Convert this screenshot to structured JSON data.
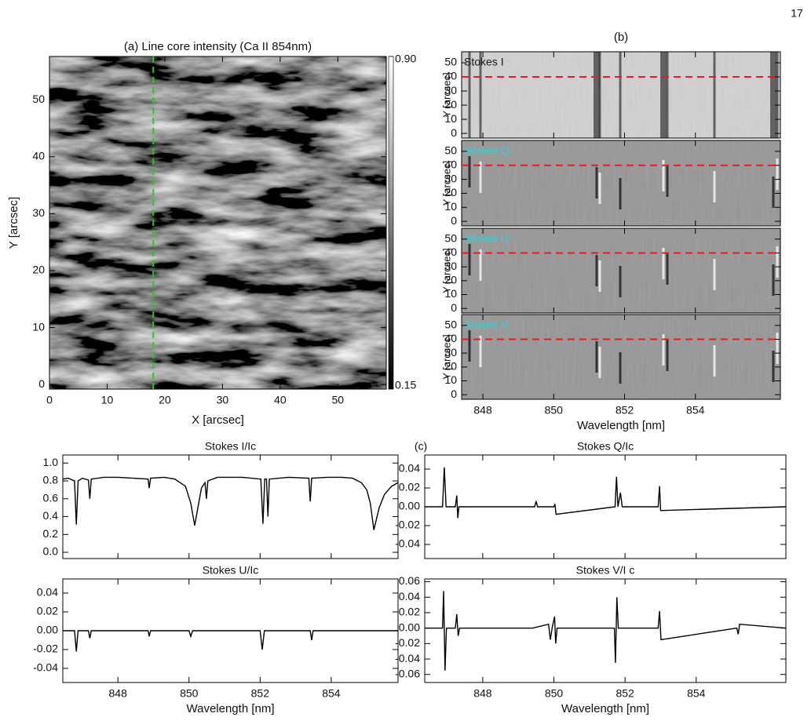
{
  "page_number": "17",
  "panel_c_label": "(c)",
  "chart_data": [
    {
      "type": "image",
      "title": "(a) Line core intensity (Ca II 854nm)",
      "xlabel": "X [arcsec]",
      "ylabel": "Y [arcsec]",
      "xlim": [
        0,
        58.4
      ],
      "ylim": [
        -0.8,
        57.6
      ],
      "xticks": [
        0,
        10,
        20,
        30,
        40,
        50
      ],
      "yticks": [
        0,
        10,
        20,
        30,
        40,
        50
      ],
      "slit_x": 18,
      "slit_color": "#22cc22",
      "colorbar": {
        "clim": [
          0.15,
          0.9
        ],
        "ticks": [
          {
            "value": 0.9,
            "label": "0.90"
          },
          0.15
        ]
      }
    },
    {
      "type": "spectrogram",
      "title": "(b)",
      "xlabel": "Wavelength [nm]",
      "ylabel": "Y [arcsec]",
      "xlim": [
        847.4,
        856.4
      ],
      "xticks": [
        848,
        850,
        852,
        854
      ],
      "ylim": [
        -3.3,
        57.8
      ],
      "yticks": [
        0,
        10,
        20,
        30,
        40,
        50
      ],
      "cut_y": 40,
      "cut_color": "#e02020",
      "panels": [
        {
          "name": "Stokes I",
          "label_color": "#1a1a1a"
        },
        {
          "name": "Stokes Q",
          "label_color": "#22d8e0"
        },
        {
          "name": "Stokes U",
          "label_color": "#22d8e0"
        },
        {
          "name": "Stokes V",
          "label_color": "#22d8e0"
        }
      ]
    },
    {
      "type": "line",
      "title": "Stokes I/Ic",
      "color": "#000000",
      "show_xtick_labels": false,
      "xlim": [
        846.45,
        855.88
      ],
      "ylim": [
        -0.07,
        1.09
      ],
      "xticks": [
        848,
        850,
        852,
        854
      ],
      "yticks": [
        {
          "value": 0,
          "label": "0.0"
        },
        0.2,
        0.4,
        0.6,
        0.8,
        {
          "value": 1,
          "label": "1.0"
        }
      ],
      "x": [
        846.45,
        846.6,
        846.78,
        846.83,
        846.88,
        847.0,
        847.17,
        847.21,
        847.25,
        847.6,
        848.0,
        848.85,
        848.88,
        848.92,
        849.3,
        849.6,
        849.9,
        850.05,
        850.16,
        850.25,
        850.35,
        850.45,
        850.49,
        850.53,
        850.8,
        851.5,
        852.02,
        852.08,
        852.13,
        852.18,
        852.22,
        852.26,
        852.8,
        853.37,
        853.41,
        853.45,
        853.9,
        854.3,
        854.6,
        854.85,
        855.0,
        855.1,
        855.2,
        855.35,
        855.5,
        855.7,
        855.88
      ],
      "values": [
        0.82,
        0.83,
        0.8,
        0.31,
        0.8,
        0.83,
        0.81,
        0.6,
        0.82,
        0.84,
        0.84,
        0.82,
        0.72,
        0.83,
        0.84,
        0.82,
        0.74,
        0.55,
        0.3,
        0.5,
        0.72,
        0.78,
        0.6,
        0.8,
        0.84,
        0.84,
        0.82,
        0.32,
        0.82,
        0.82,
        0.4,
        0.82,
        0.84,
        0.83,
        0.57,
        0.83,
        0.84,
        0.84,
        0.83,
        0.78,
        0.7,
        0.55,
        0.25,
        0.5,
        0.65,
        0.74,
        0.78
      ]
    },
    {
      "type": "line",
      "title": "Stokes Q/Ic",
      "color": "#000000",
      "show_xtick_labels": false,
      "xlim": [
        846.37,
        856.52
      ],
      "ylim": [
        -0.055,
        0.055
      ],
      "xticks": [
        848,
        850,
        852,
        854
      ],
      "yticks": [
        -0.04,
        -0.02,
        {
          "value": 0,
          "label": "0.00"
        },
        0.02,
        0.04
      ],
      "x": [
        846.37,
        846.87,
        846.92,
        846.97,
        847.23,
        847.27,
        847.3,
        847.33,
        849.46,
        849.5,
        849.54,
        850.0,
        850.03,
        850.06,
        851.72,
        851.76,
        851.8,
        851.87,
        851.92,
        852.93,
        852.97,
        853.0,
        856.52
      ],
      "values": [
        0,
        0,
        0.042,
        0,
        0,
        0.012,
        -0.012,
        0,
        0,
        0.006,
        0,
        0,
        0.003,
        -0.008,
        0,
        0.032,
        0,
        0.015,
        0,
        0,
        0.022,
        -0.004,
        0
      ]
    },
    {
      "type": "line",
      "title": "Stokes U/Ic",
      "color": "#000000",
      "xlabel": "Wavelength [nm]",
      "xlim": [
        846.45,
        855.88
      ],
      "ylim": [
        -0.055,
        0.055
      ],
      "xticks": [
        848,
        850,
        852,
        854
      ],
      "yticks": [
        -0.04,
        -0.02,
        {
          "value": 0,
          "label": "0.00"
        },
        0.02,
        0.04
      ],
      "x": [
        846.45,
        846.78,
        846.83,
        846.88,
        847.17,
        847.21,
        847.25,
        848.85,
        848.88,
        848.92,
        850.0,
        850.05,
        850.1,
        852.0,
        852.06,
        852.12,
        853.41,
        853.45,
        853.49,
        855.88
      ],
      "values": [
        0,
        0,
        -0.022,
        0,
        0,
        -0.008,
        0,
        0,
        -0.006,
        0,
        0,
        -0.006,
        0,
        0,
        -0.02,
        0,
        0,
        -0.01,
        0,
        0
      ]
    },
    {
      "type": "line",
      "title": "Stokes V/I c",
      "color": "#000000",
      "xlabel": "Wavelength [nm]",
      "xlim": [
        846.37,
        856.52
      ],
      "ylim": [
        -0.0704,
        0.0636
      ],
      "xticks": [
        848,
        850,
        852,
        854
      ],
      "yticks": [
        -0.06,
        -0.04,
        -0.02,
        {
          "value": 0,
          "label": "0.00"
        },
        0.02,
        0.04,
        0.06
      ],
      "x": [
        846.37,
        846.87,
        846.9,
        846.94,
        846.98,
        847.23,
        847.27,
        847.31,
        847.35,
        849.4,
        849.85,
        849.9,
        849.95,
        850.02,
        850.05,
        850.09,
        851.7,
        851.73,
        851.77,
        851.81,
        852.93,
        852.97,
        853.01,
        855.14,
        855.18,
        855.22,
        856.52
      ],
      "values": [
        0,
        0,
        0.048,
        -0.055,
        0,
        0,
        0.018,
        -0.01,
        0,
        0,
        0.005,
        -0.015,
        0,
        0.015,
        -0.02,
        0,
        0,
        -0.045,
        0.04,
        0,
        0,
        0.022,
        -0.015,
        0,
        -0.008,
        0.005,
        0
      ]
    }
  ]
}
